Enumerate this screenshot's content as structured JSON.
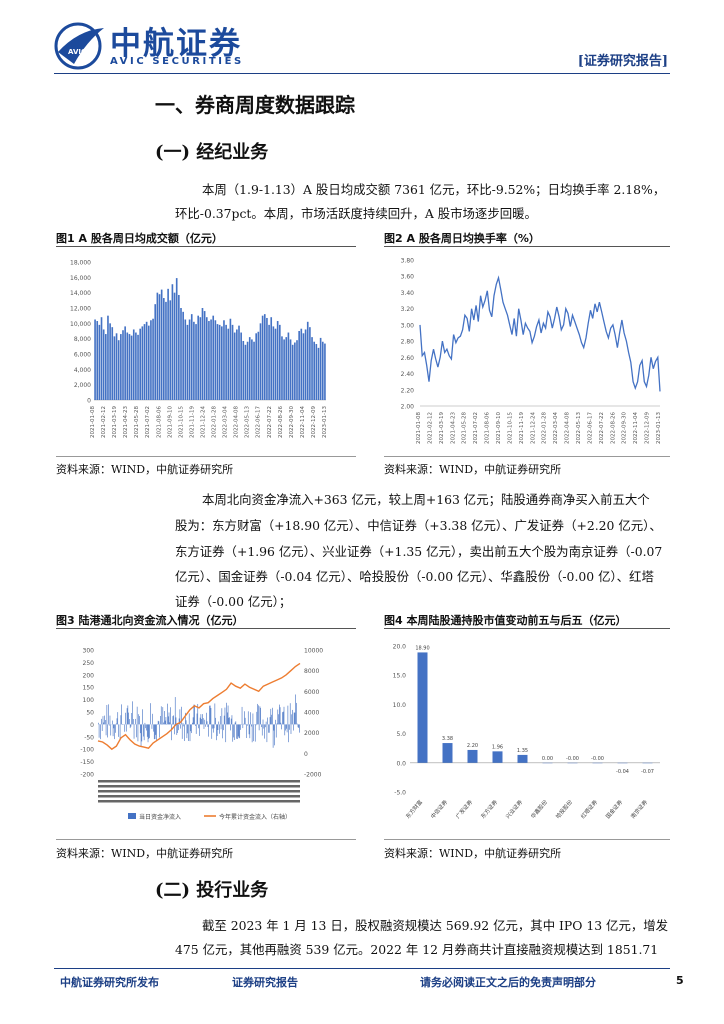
{
  "header": {
    "logo_cn": "中航证券",
    "logo_en": "AVIC SECURITIES",
    "logo_mark_text": "AVIC",
    "report_tag": "[证券研究报告]"
  },
  "section1": {
    "title": "一、券商周度数据跟踪"
  },
  "sub1": {
    "title": "(一)  经纪业务",
    "para1_line1": "本周（1.9-1.13）A 股日均成交额 7361 亿元，环比-9.52%；日均换手率 2.18%，",
    "para1_line2": "环比-0.37pct。本周，市场活跃度持续回升，A 股市场逐步回暖。",
    "para2_lines": [
      "本周北向资金净流入+363 亿元，较上周+163 亿元；陆股通券商净买入前五大个",
      "股为：东方财富（+18.90 亿元）、中信证券（+3.38 亿元）、广发证券（+2.20 亿元）、",
      "东方证券（+1.96 亿元）、兴业证券（+1.35 亿元），卖出前五大个股为南京证券（-0.07",
      "亿元）、国金证券（-0.04 亿元）、哈投股份（-0.00 亿元）、华鑫股份（-0.00 亿）、红塔",
      "证券（-0.00 亿元）；"
    ]
  },
  "fig1": {
    "title": "图1  A 股各周日均成交额（亿元）",
    "source": "资料来源：WIND，中航证券研究所",
    "y_ticks": [
      "18,000",
      "16,000",
      "14,000",
      "12,000",
      "10,000",
      "8,000",
      "6,000",
      "4,000",
      "2,000",
      "0"
    ],
    "x_ticks": [
      "2021-01-08",
      "2021-02-12",
      "2021-03-19",
      "2021-04-23",
      "2021-05-28",
      "2021-07-02",
      "2021-08-06",
      "2021-09-10",
      "2021-10-15",
      "2021-11-19",
      "2021-12-24",
      "2022-01-28",
      "2022-03-04",
      "2022-04-08",
      "2022-05-13",
      "2022-06-17",
      "2022-07-22",
      "2022-08-26",
      "2022-09-30",
      "2022-11-04",
      "2022-12-09",
      "2023-01-13"
    ]
  },
  "fig2": {
    "title": "图2  A 股各周日均换手率（%）",
    "source": "资料来源：WIND，中航证券研究所",
    "y_ticks": [
      "3.80",
      "3.60",
      "3.40",
      "3.20",
      "3.00",
      "2.80",
      "2.60",
      "2.40",
      "2.20",
      "2.00"
    ],
    "x_ticks": [
      "2021-01-08",
      "2021-02-12",
      "2021-03-19",
      "2021-04-23",
      "2021-05-28",
      "2021-07-02",
      "2021-08-06",
      "2021-09-10",
      "2021-10-15",
      "2021-11-19",
      "2021-12-24",
      "2022-01-28",
      "2022-03-04",
      "2022-04-08",
      "2022-05-13",
      "2022-06-17",
      "2022-07-22",
      "2022-08-26",
      "2022-09-30",
      "2022-11-04",
      "2022-12-09",
      "2023-01-13"
    ]
  },
  "fig3": {
    "title": "图3  陆港通北向资金流入情况（亿元）",
    "source": "资料来源：WIND，中航证券研究所",
    "y_left_ticks": [
      "300",
      "250",
      "200",
      "150",
      "100",
      "50",
      "0",
      "-50",
      "-100",
      "-150",
      "-200"
    ],
    "y_right_ticks": [
      "10000",
      "8000",
      "6000",
      "4000",
      "2000",
      "0",
      "-2000"
    ],
    "legend_bar": "当日资金净流入",
    "legend_line": "今年累计资金流入（右轴）"
  },
  "fig4": {
    "title": "图4  本周陆股通持股市值变动前五与后五（亿元）",
    "source": "资料来源：WIND，中航证券研究所",
    "y_ticks": [
      "20.0",
      "15.0",
      "10.0",
      "5.0",
      "0.0",
      "-5.0"
    ]
  },
  "sub2": {
    "title": "(二)  投行业务",
    "para_lines": [
      "截至 2023 年 1 月 13 日，股权融资规模达 569.92 亿元，其中 IPO 13 亿元，增发",
      "475 亿元，其他再融资 539 亿元。2022 年 12 月券商共计直接融资规模达到 1851.71"
    ]
  },
  "footer": {
    "left": "中航证券研究所发布",
    "mid": "证券研究报告",
    "right": "请务必阅读正文之后的免责声明部分",
    "page": "5"
  },
  "chart_data": [
    {
      "type": "bar",
      "title": "图1  A 股各周日均成交额（亿元）",
      "x_start": "2021-01-08",
      "x_end": "2023-01-13",
      "x_step": "weekly",
      "ylim": [
        0,
        18000
      ],
      "values": [
        10500,
        10300,
        9800,
        10800,
        9200,
        8600,
        11000,
        10000,
        9500,
        8300,
        8700,
        7800,
        8600,
        9100,
        9600,
        8800,
        8600,
        8400,
        9200,
        8800,
        8500,
        9300,
        9600,
        9900,
        10200,
        9700,
        10400,
        10600,
        12500,
        14000,
        13800,
        14400,
        13300,
        12800,
        14500,
        13000,
        15100,
        14000,
        15900,
        13700,
        12000,
        11500,
        10500,
        9800,
        10500,
        11200,
        10200,
        9900,
        11000,
        10800,
        12000,
        11600,
        10800,
        10300,
        10500,
        11000,
        10400,
        9900,
        9800,
        9600,
        10400,
        9800,
        9300,
        10600,
        9800,
        8800,
        9200,
        9700,
        8800,
        7700,
        7200,
        7600,
        8200,
        7900,
        7600,
        8700,
        8900,
        10000,
        11000,
        11200,
        10700,
        9800,
        10800,
        9600,
        9300,
        10300,
        9800,
        8300,
        7900,
        8200,
        8800,
        7900,
        7200,
        7500,
        7800,
        9000,
        9300,
        8700,
        9200,
        10200,
        9500,
        8200,
        7600,
        7300,
        6800,
        8100,
        7600,
        7361
      ]
    },
    {
      "type": "line",
      "title": "图2  A 股各周日均换手率（%）",
      "x_start": "2021-01-08",
      "x_end": "2023-01-13",
      "x_step": "weekly",
      "ylim": [
        2.0,
        3.8
      ],
      "values": [
        3.0,
        2.62,
        2.66,
        2.5,
        2.3,
        2.56,
        2.7,
        2.58,
        2.48,
        2.6,
        2.8,
        2.66,
        2.7,
        2.62,
        2.58,
        2.88,
        2.78,
        2.84,
        2.86,
        2.94,
        3.12,
        3.08,
        2.92,
        3.2,
        3.06,
        3.24,
        3.04,
        3.36,
        3.22,
        3.3,
        3.42,
        3.18,
        3.1,
        3.36,
        3.5,
        3.58,
        3.44,
        3.28,
        3.2,
        3.12,
        3.0,
        2.88,
        3.08,
        2.86,
        3.2,
        3.06,
        2.88,
        3.02,
        2.96,
        2.92,
        2.78,
        2.86,
        2.98,
        3.06,
        2.9,
        3.02,
        2.96,
        3.16,
        3.1,
        2.96,
        3.08,
        3.22,
        3.1,
        2.94,
        3.0,
        3.2,
        3.14,
        2.98,
        3.12,
        3.04,
        2.96,
        2.88,
        2.78,
        2.72,
        2.84,
        3.02,
        3.18,
        3.08,
        3.26,
        3.16,
        3.28,
        3.16,
        3.04,
        2.92,
        2.84,
        2.96,
        3.0,
        2.88,
        2.72,
        2.9,
        3.06,
        2.9,
        2.8,
        2.66,
        2.54,
        2.3,
        2.22,
        2.3,
        2.5,
        2.56,
        2.3,
        2.24,
        2.38,
        2.6,
        2.46,
        2.55,
        2.6,
        2.18
      ]
    },
    {
      "type": "bar",
      "title": "图3  陆港通北向资金流入情况（亿元）",
      "ylim_left": [
        -200,
        300
      ],
      "ylim_right": [
        -2000,
        10000
      ],
      "series": [
        {
          "name": "当日资金净流入",
          "type": "bar",
          "axis": "left"
        },
        {
          "name": "今年累计资金流入（右轴）",
          "type": "line",
          "axis": "right",
          "values": [
            1200,
            1100,
            800,
            400,
            700,
            1500,
            1800,
            1300,
            900,
            700,
            600,
            500,
            1000,
            1300,
            1600,
            1900,
            2300,
            2800,
            3000,
            3600,
            4200,
            4600,
            4400,
            4800,
            4900,
            5300,
            5600,
            5900,
            6200,
            6800,
            6500,
            6300,
            6700,
            6400,
            6200,
            6000,
            6500,
            6700,
            6900,
            7100,
            7300,
            7600,
            8000,
            8400,
            8700
          ]
        }
      ]
    },
    {
      "type": "bar",
      "title": "图4  本周陆股通持股市值变动前五与后五（亿元）",
      "ylim": [
        -5,
        20
      ],
      "values": [
        18.9,
        3.38,
        2.2,
        1.96,
        1.35,
        0.0,
        0.0,
        0.0,
        -0.04,
        -0.07
      ],
      "data_labels": [
        "18.90",
        "3.38",
        "2.20",
        "1.96",
        "1.35",
        "0.00",
        "-0.00",
        "-0.00",
        "-0.04",
        "-0.07"
      ],
      "categories": [
        "东方财富",
        "中信证券",
        "广发证券",
        "东方证券",
        "兴业证券",
        "华鑫股份",
        "哈投股份",
        "红塔证券",
        "国金证券",
        "南京证券"
      ]
    }
  ]
}
